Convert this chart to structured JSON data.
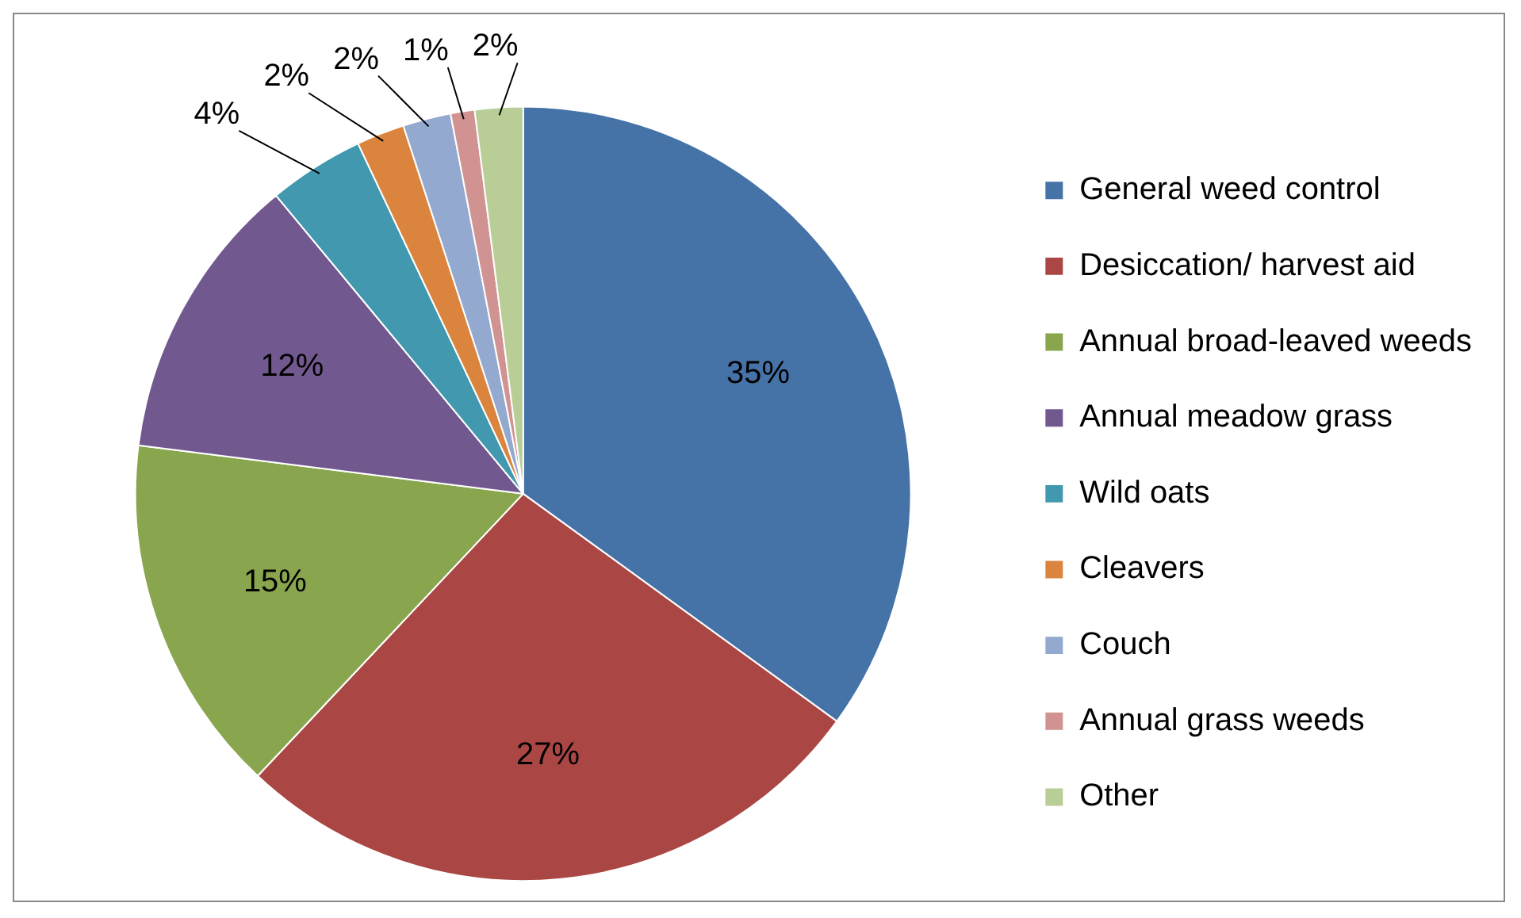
{
  "chart_data": {
    "type": "pie",
    "categories": [
      "General weed control",
      "Desiccation/ harvest aid",
      "Annual broad-leaved weeds",
      "Annual meadow grass",
      "Wild oats",
      "Cleavers",
      "Couch",
      "Annual grass weeds",
      "Other"
    ],
    "values": [
      35,
      27,
      15,
      12,
      4,
      2,
      2,
      1,
      2
    ],
    "value_labels": [
      "35%",
      "27%",
      "15%",
      "12%",
      "4%",
      "2%",
      "2%",
      "1%",
      "2%"
    ],
    "colors": [
      "#4572a7",
      "#aa4643",
      "#89a54e",
      "#71588f",
      "#4198af",
      "#db843d",
      "#93a9cf",
      "#d19392",
      "#b9cd96"
    ],
    "legend": "right"
  }
}
